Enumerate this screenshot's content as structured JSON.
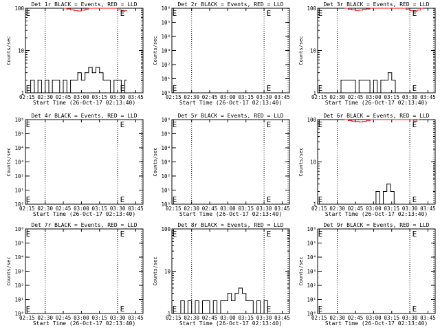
{
  "chart_data": [
    {
      "type": "line",
      "title": "Det 1r BLACK = Events, RED = LLD",
      "xlabel": "Start Time (26-Oct-17 02:13:40)",
      "ylabel": "Counts/sec",
      "x_tick_labels": [
        "02:15",
        "02:30",
        "02:45",
        "03:00",
        "03:15",
        "03:30",
        "03:45"
      ],
      "y_scale": "log",
      "y_tick_labels": [
        {
          "value": 1,
          "label": "1"
        },
        {
          "value": 10,
          "label": "10"
        },
        {
          "value": 100,
          "label": "100"
        }
      ],
      "ylim": [
        1,
        100
      ],
      "vlines": [
        "02:30",
        "03:30"
      ],
      "markers": [
        {
          "time": "02:14",
          "label": "E"
        },
        {
          "time": "03:32",
          "label": "E"
        }
      ],
      "series": [
        {
          "color": "#000000",
          "x": [
            "02:15",
            "02:18",
            "02:21",
            "02:24",
            "02:27",
            "02:30",
            "02:33",
            "02:36",
            "02:39",
            "02:42",
            "02:45",
            "02:48",
            "02:51",
            "02:54",
            "02:57",
            "03:00",
            "03:03",
            "03:06",
            "03:09",
            "03:12",
            "03:15",
            "03:18",
            "03:21",
            "03:24",
            "03:27",
            "03:30",
            "03:33",
            "03:36"
          ],
          "y": [
            1,
            2,
            1,
            2,
            1,
            2,
            1,
            2,
            2,
            1,
            2,
            1,
            2,
            2,
            3,
            2,
            3,
            4,
            3,
            4,
            3,
            2,
            2,
            1,
            2,
            2,
            1,
            2
          ]
        },
        {
          "color": "#ff0000",
          "x": [
            "02:45",
            "02:48",
            "02:51",
            "02:54",
            "02:57",
            "03:00",
            "03:03",
            "03:06",
            "03:27",
            "03:30",
            "03:33",
            "03:36"
          ],
          "y": [
            100,
            96,
            92,
            88,
            86,
            90,
            95,
            100,
            100,
            92,
            85,
            88
          ]
        }
      ]
    },
    {
      "type": "line",
      "title": "Det 2r BLACK = Events, RED = LLD",
      "xlabel": "Start Time (26-Oct-17 02:13:40)",
      "ylabel": "Counts/sec",
      "x_tick_labels": [
        "02:15",
        "02:30",
        "02:45",
        "03:00",
        "03:15",
        "03:30",
        "03:45"
      ],
      "y_scale": "log",
      "y_tick_labels": [
        {
          "value": 1,
          "label": "10⁰"
        },
        {
          "value": 10,
          "label": "10¹"
        },
        {
          "value": 100,
          "label": "10²"
        },
        {
          "value": 1000,
          "label": "10³"
        },
        {
          "value": 10000,
          "label": "10⁴"
        },
        {
          "value": 100000,
          "label": "10⁵"
        },
        {
          "value": 1000000,
          "label": "10⁶"
        }
      ],
      "ylim": [
        1,
        1000000
      ],
      "vlines": [
        "02:30",
        "03:30"
      ],
      "markers": [
        {
          "time": "02:14",
          "label": "E"
        },
        {
          "time": "03:32",
          "label": "E"
        }
      ],
      "series": []
    },
    {
      "type": "line",
      "title": "Det 3r BLACK = Events, RED = LLD",
      "xlabel": "Start Time (26-Oct-17 02:13:40)",
      "ylabel": "Counts/sec",
      "x_tick_labels": [
        "02:15",
        "02:30",
        "02:45",
        "03:00",
        "03:15",
        "03:30",
        "03:45"
      ],
      "y_scale": "log",
      "y_tick_labels": [
        {
          "value": 1,
          "label": "1"
        },
        {
          "value": 10,
          "label": "10"
        },
        {
          "value": 100,
          "label": "100"
        }
      ],
      "ylim": [
        1,
        100
      ],
      "vlines": [
        "02:30",
        "03:30"
      ],
      "markers": [
        {
          "time": "02:14",
          "label": "E"
        },
        {
          "time": "03:32",
          "label": "E"
        }
      ],
      "series": [
        {
          "color": "#000000",
          "x": [
            "02:30",
            "02:33",
            "02:45",
            "02:48",
            "02:57",
            "03:00",
            "03:03",
            "03:06",
            "03:09",
            "03:12",
            "03:15",
            "03:18"
          ],
          "y": [
            1,
            2,
            1,
            2,
            1,
            2,
            1,
            2,
            2,
            3,
            2,
            1
          ]
        },
        {
          "color": "#ff0000",
          "x": [
            "02:36",
            "02:39",
            "02:42",
            "02:45",
            "02:48",
            "02:51",
            "02:54",
            "02:57",
            "03:24",
            "03:27",
            "03:30",
            "03:33",
            "03:36",
            "03:39"
          ],
          "y": [
            100,
            95,
            92,
            88,
            90,
            94,
            96,
            100,
            100,
            93,
            88,
            85,
            90,
            100
          ]
        }
      ]
    },
    {
      "type": "line",
      "title": "Det 4r BLACK = Events, RED = LLD",
      "xlabel": "Start Time (26-Oct-17 02:13:40)",
      "ylabel": "Counts/sec",
      "x_tick_labels": [
        "02:15",
        "02:30",
        "02:45",
        "03:00",
        "03:15",
        "03:30",
        "03:45"
      ],
      "y_scale": "log",
      "y_tick_labels": [
        {
          "value": 1,
          "label": "10⁰"
        },
        {
          "value": 10,
          "label": "10¹"
        },
        {
          "value": 100,
          "label": "10²"
        },
        {
          "value": 1000,
          "label": "10³"
        },
        {
          "value": 10000,
          "label": "10⁴"
        },
        {
          "value": 100000,
          "label": "10⁵"
        },
        {
          "value": 1000000,
          "label": "10⁶"
        }
      ],
      "ylim": [
        1,
        1000000
      ],
      "vlines": [
        "02:30",
        "03:30"
      ],
      "markers": [
        {
          "time": "02:14",
          "label": "E"
        },
        {
          "time": "03:32",
          "label": "E"
        }
      ],
      "series": []
    },
    {
      "type": "line",
      "title": "Det 5r BLACK = Events, RED = LLD",
      "xlabel": "Start Time (26-Oct-17 02:13:40)",
      "ylabel": "Counts/sec",
      "x_tick_labels": [
        "02:15",
        "02:30",
        "02:45",
        "03:00",
        "03:15",
        "03:30",
        "03:45"
      ],
      "y_scale": "log",
      "y_tick_labels": [
        {
          "value": 1,
          "label": "10⁰"
        },
        {
          "value": 10,
          "label": "10¹"
        },
        {
          "value": 100,
          "label": "10²"
        },
        {
          "value": 1000,
          "label": "10³"
        },
        {
          "value": 10000,
          "label": "10⁴"
        },
        {
          "value": 100000,
          "label": "10⁵"
        },
        {
          "value": 1000000,
          "label": "10⁶"
        }
      ],
      "ylim": [
        1,
        1000000
      ],
      "vlines": [
        "02:30",
        "03:30"
      ],
      "markers": [
        {
          "time": "02:14",
          "label": "E"
        },
        {
          "time": "03:32",
          "label": "E"
        }
      ],
      "series": []
    },
    {
      "type": "line",
      "title": "Det 6r BLACK = Events, RED = LLD",
      "xlabel": "Start Time (26-Oct-17 02:13:40)",
      "ylabel": "Counts/sec",
      "x_tick_labels": [
        "02:15",
        "02:30",
        "02:45",
        "03:00",
        "03:15",
        "03:30",
        "03:45"
      ],
      "y_scale": "log",
      "y_tick_labels": [
        {
          "value": 1,
          "label": "1"
        },
        {
          "value": 10,
          "label": "10"
        },
        {
          "value": 100,
          "label": "100"
        }
      ],
      "ylim": [
        1,
        100
      ],
      "vlines": [
        "02:30",
        "03:30"
      ],
      "markers": [
        {
          "time": "02:14",
          "label": "E"
        },
        {
          "time": "03:32",
          "label": "E"
        }
      ],
      "series": [
        {
          "color": "#000000",
          "x": [
            "02:59",
            "03:02",
            "03:05",
            "03:08",
            "03:11",
            "03:14",
            "03:17"
          ],
          "y": [
            1,
            2,
            1,
            2,
            3,
            2,
            1
          ]
        },
        {
          "color": "#ff0000",
          "x": [
            "02:36",
            "02:39",
            "02:42",
            "02:45",
            "02:48",
            "02:51",
            "02:54",
            "02:57",
            "03:30",
            "03:33",
            "03:36"
          ],
          "y": [
            100,
            95,
            92,
            90,
            88,
            90,
            94,
            100,
            100,
            92,
            100
          ]
        }
      ]
    },
    {
      "type": "line",
      "title": "Det 7r BLACK = Events, RED = LLD",
      "xlabel": "Start Time (26-Oct-17 02:13:40)",
      "ylabel": "Counts/sec",
      "x_tick_labels": [
        "02:15",
        "02:30",
        "02:45",
        "03:00",
        "03:15",
        "03:30",
        "03:45"
      ],
      "y_scale": "log",
      "y_tick_labels": [
        {
          "value": 1,
          "label": "10⁰"
        },
        {
          "value": 10,
          "label": "10¹"
        },
        {
          "value": 100,
          "label": "10²"
        },
        {
          "value": 1000,
          "label": "10³"
        },
        {
          "value": 10000,
          "label": "10⁴"
        },
        {
          "value": 100000,
          "label": "10⁵"
        },
        {
          "value": 1000000,
          "label": "10⁶"
        }
      ],
      "ylim": [
        1,
        1000000
      ],
      "vlines": [
        "02:30",
        "03:30"
      ],
      "markers": [
        {
          "time": "02:14",
          "label": "E"
        },
        {
          "time": "03:32",
          "label": "E"
        }
      ],
      "series": []
    },
    {
      "type": "line",
      "title": "Det 8r BLACK = Events, RED = LLD",
      "xlabel": "Start Time (26-Oct-17 02:13:40)",
      "ylabel": "Counts/sec",
      "x_tick_labels": [
        "02:15",
        "02:30",
        "02:45",
        "03:00",
        "03:15",
        "03:30",
        "03:45"
      ],
      "y_scale": "log",
      "y_tick_labels": [
        {
          "value": 1,
          "label": "1"
        },
        {
          "value": 10,
          "label": "10"
        },
        {
          "value": 100,
          "label": "100"
        }
      ],
      "ylim": [
        1,
        100
      ],
      "vlines": [
        "02:30",
        "03:30"
      ],
      "markers": [
        {
          "time": "02:14",
          "label": "E"
        },
        {
          "time": "03:32",
          "label": "E"
        }
      ],
      "series": [
        {
          "color": "#000000",
          "x": [
            "02:18",
            "02:21",
            "02:24",
            "02:27",
            "02:30",
            "02:33",
            "02:36",
            "02:39",
            "02:42",
            "02:45",
            "02:48",
            "02:51",
            "02:54",
            "02:57",
            "03:00",
            "03:03",
            "03:06",
            "03:09",
            "03:12",
            "03:15",
            "03:18",
            "03:21",
            "03:24",
            "03:27",
            "03:30",
            "03:33"
          ],
          "y": [
            1,
            2,
            1,
            2,
            1,
            2,
            1,
            2,
            2,
            1,
            2,
            1,
            2,
            2,
            3,
            2,
            3,
            4,
            3,
            2,
            2,
            1,
            2,
            1,
            2,
            1
          ]
        }
      ]
    },
    {
      "type": "line",
      "title": "Det 9r BLACK = Events, RED = LLD",
      "xlabel": "Start Time (26-Oct-17 02:13:40)",
      "ylabel": "Counts/sec",
      "x_tick_labels": [
        "02:15",
        "02:30",
        "02:45",
        "03:00",
        "03:15",
        "03:30",
        "03:45"
      ],
      "y_scale": "log",
      "y_tick_labels": [
        {
          "value": 1,
          "label": "10⁰"
        },
        {
          "value": 10,
          "label": "10¹"
        },
        {
          "value": 100,
          "label": "10²"
        },
        {
          "value": 1000,
          "label": "10³"
        },
        {
          "value": 10000,
          "label": "10⁴"
        },
        {
          "value": 100000,
          "label": "10⁵"
        },
        {
          "value": 1000000,
          "label": "10⁶"
        }
      ],
      "ylim": [
        1,
        1000000
      ],
      "vlines": [
        "02:30",
        "03:30"
      ],
      "markers": [
        {
          "time": "02:14",
          "label": "E"
        },
        {
          "time": "03:32",
          "label": "E"
        }
      ],
      "series": []
    }
  ]
}
